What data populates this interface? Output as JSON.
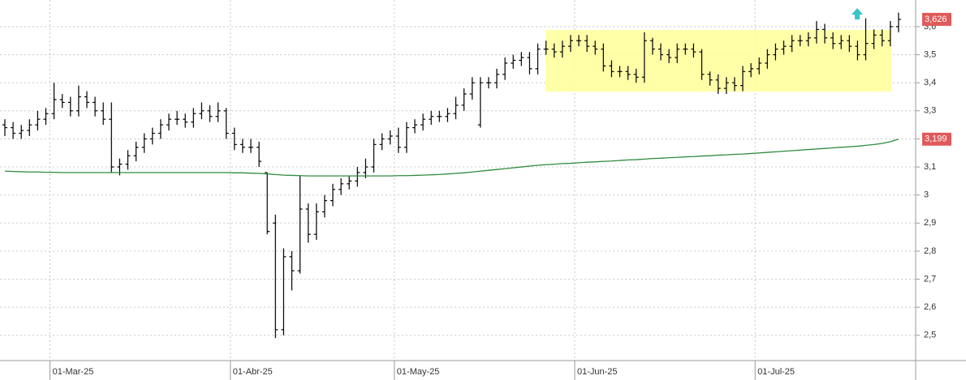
{
  "chart_data": {
    "type": "ohlc",
    "categories": [
      null,
      null,
      null,
      null,
      null,
      null,
      "01-Mar-25",
      null,
      null,
      null,
      null,
      null,
      null,
      null,
      null,
      null,
      null,
      null,
      null,
      null,
      null,
      null,
      null,
      null,
      null,
      null,
      null,
      null,
      "01-Abr-25",
      null,
      null,
      null,
      null,
      null,
      null,
      null,
      null,
      null,
      null,
      null,
      null,
      null,
      null,
      null,
      null,
      null,
      null,
      null,
      "01-May-25",
      null,
      null,
      null,
      null,
      null,
      null,
      null,
      null,
      null,
      null,
      null,
      null,
      null,
      null,
      null,
      null,
      null,
      null,
      null,
      null,
      null,
      "01-Jun-25",
      null,
      null,
      null,
      null,
      null,
      null,
      null,
      null,
      null,
      null,
      null,
      null,
      null,
      null,
      null,
      null,
      null,
      null,
      null,
      null,
      null,
      "01-Jul-25",
      null,
      null,
      null,
      null,
      null,
      null,
      null,
      null,
      null,
      null,
      null,
      null,
      null,
      null,
      null,
      null,
      null
    ],
    "open": [
      3.25,
      3.24,
      3.22,
      3.23,
      3.25,
      3.27,
      3.29,
      3.34,
      3.33,
      3.3,
      3.35,
      3.33,
      3.3,
      3.27,
      3.1,
      3.11,
      3.14,
      3.17,
      3.2,
      3.22,
      3.25,
      3.27,
      3.27,
      3.26,
      3.29,
      3.3,
      3.28,
      3.3,
      3.22,
      3.18,
      3.17,
      3.17,
      3.08,
      2.9,
      2.52,
      2.78,
      2.73,
      2.95,
      2.86,
      2.94,
      2.98,
      3.02,
      3.04,
      3.05,
      3.08,
      3.1,
      3.18,
      3.2,
      3.21,
      3.17,
      3.24,
      3.25,
      3.27,
      3.28,
      3.28,
      3.29,
      3.32,
      3.36,
      3.25,
      3.4,
      3.4,
      3.43,
      3.47,
      3.48,
      3.49,
      3.45,
      3.52,
      3.52,
      3.51,
      3.53,
      3.55,
      3.55,
      3.53,
      3.52,
      3.46,
      3.44,
      3.44,
      3.43,
      3.42,
      3.55,
      3.52,
      3.5,
      3.49,
      3.52,
      3.52,
      3.51,
      3.43,
      3.41,
      3.38,
      3.4,
      3.39,
      3.44,
      3.45,
      3.47,
      3.5,
      3.52,
      3.53,
      3.55,
      3.55,
      3.56,
      3.59,
      3.56,
      3.54,
      3.55,
      3.53,
      3.5,
      3.54,
      3.57,
      3.55,
      3.6
    ],
    "high": [
      3.27,
      3.26,
      3.25,
      3.27,
      3.3,
      3.31,
      3.4,
      3.36,
      3.35,
      3.39,
      3.37,
      3.35,
      3.33,
      3.33,
      3.13,
      3.16,
      3.19,
      3.22,
      3.24,
      3.27,
      3.29,
      3.3,
      3.29,
      3.31,
      3.33,
      3.32,
      3.33,
      3.31,
      3.24,
      3.2,
      3.2,
      3.19,
      3.08,
      2.93,
      2.81,
      2.8,
      3.07,
      2.97,
      2.97,
      3.0,
      3.04,
      3.06,
      3.07,
      3.1,
      3.13,
      3.2,
      3.22,
      3.23,
      3.24,
      3.26,
      3.27,
      3.29,
      3.3,
      3.3,
      3.31,
      3.35,
      3.38,
      3.42,
      3.42,
      3.42,
      3.45,
      3.49,
      3.5,
      3.51,
      3.51,
      3.54,
      3.55,
      3.54,
      3.55,
      3.57,
      3.57,
      3.57,
      3.55,
      3.54,
      3.48,
      3.46,
      3.46,
      3.45,
      3.58,
      3.56,
      3.54,
      3.52,
      3.54,
      3.54,
      3.54,
      3.52,
      3.44,
      3.43,
      3.42,
      3.42,
      3.46,
      3.47,
      3.49,
      3.52,
      3.54,
      3.55,
      3.57,
      3.57,
      3.58,
      3.62,
      3.61,
      3.58,
      3.57,
      3.57,
      3.55,
      3.63,
      3.59,
      3.59,
      3.62,
      3.65
    ],
    "low": [
      3.21,
      3.2,
      3.2,
      3.21,
      3.23,
      3.25,
      3.27,
      3.31,
      3.28,
      3.28,
      3.31,
      3.28,
      3.25,
      3.08,
      3.07,
      3.09,
      3.12,
      3.15,
      3.18,
      3.2,
      3.23,
      3.25,
      3.24,
      3.24,
      3.27,
      3.26,
      3.26,
      3.2,
      3.16,
      3.15,
      3.15,
      3.1,
      2.86,
      2.49,
      2.5,
      2.66,
      2.72,
      2.83,
      2.84,
      2.92,
      2.96,
      3.0,
      3.02,
      3.03,
      3.06,
      3.08,
      3.16,
      3.18,
      3.15,
      3.15,
      3.22,
      3.23,
      3.25,
      3.26,
      3.26,
      3.27,
      3.3,
      3.34,
      3.24,
      3.38,
      3.38,
      3.41,
      3.45,
      3.46,
      3.43,
      3.43,
      3.5,
      3.49,
      3.49,
      3.51,
      3.53,
      3.51,
      3.5,
      3.44,
      3.42,
      3.42,
      3.41,
      3.4,
      3.4,
      3.5,
      3.48,
      3.47,
      3.47,
      3.5,
      3.49,
      3.41,
      3.39,
      3.36,
      3.36,
      3.37,
      3.37,
      3.42,
      3.43,
      3.45,
      3.48,
      3.5,
      3.51,
      3.53,
      3.53,
      3.54,
      3.54,
      3.52,
      3.52,
      3.51,
      3.48,
      3.48,
      3.52,
      3.53,
      3.53,
      3.58
    ],
    "close": [
      3.24,
      3.22,
      3.23,
      3.25,
      3.27,
      3.29,
      3.34,
      3.33,
      3.3,
      3.35,
      3.33,
      3.3,
      3.27,
      3.1,
      3.11,
      3.14,
      3.17,
      3.2,
      3.22,
      3.25,
      3.27,
      3.27,
      3.26,
      3.29,
      3.3,
      3.28,
      3.3,
      3.22,
      3.18,
      3.17,
      3.17,
      3.12,
      2.87,
      2.52,
      2.78,
      2.73,
      2.95,
      2.86,
      2.94,
      2.98,
      3.02,
      3.04,
      3.05,
      3.08,
      3.1,
      3.18,
      3.2,
      3.21,
      3.17,
      3.24,
      3.25,
      3.27,
      3.28,
      3.28,
      3.29,
      3.32,
      3.36,
      3.4,
      3.4,
      3.4,
      3.43,
      3.47,
      3.48,
      3.49,
      3.45,
      3.52,
      3.52,
      3.51,
      3.53,
      3.55,
      3.55,
      3.53,
      3.52,
      3.46,
      3.44,
      3.44,
      3.43,
      3.42,
      3.55,
      3.52,
      3.5,
      3.49,
      3.52,
      3.52,
      3.51,
      3.43,
      3.41,
      3.38,
      3.4,
      3.39,
      3.44,
      3.45,
      3.47,
      3.5,
      3.52,
      3.53,
      3.55,
      3.55,
      3.56,
      3.59,
      3.56,
      3.54,
      3.55,
      3.53,
      3.5,
      3.54,
      3.57,
      3.55,
      3.6,
      3.626
    ],
    "value_labels": [
      null,
      null,
      null,
      null,
      null,
      null,
      null,
      null,
      null,
      null,
      null,
      null,
      null,
      null,
      null,
      null,
      null,
      null,
      null,
      null,
      null,
      null,
      null,
      null,
      null,
      null,
      null,
      null,
      null,
      null,
      null,
      null,
      null,
      null,
      null,
      null,
      null,
      null,
      null,
      null,
      null,
      null,
      null,
      null,
      null,
      null,
      null,
      null,
      null,
      null,
      null,
      null,
      null,
      null,
      null,
      null,
      null,
      null,
      null,
      null,
      null,
      null,
      null,
      null,
      null,
      null,
      null,
      null,
      null,
      null,
      null,
      null,
      null,
      null,
      null,
      null,
      null,
      null,
      null,
      null,
      null,
      null,
      null,
      null,
      null,
      null,
      null,
      null,
      null,
      null,
      null,
      null,
      null,
      null,
      null,
      null,
      null,
      null,
      null,
      null,
      null,
      null,
      null,
      null,
      null,
      null,
      null,
      null,
      null,
      "3,626"
    ],
    "color": "#000000",
    "label_color": "#e05a5a",
    "moving_average": {
      "color": "#2e8b3e",
      "values": [
        3.085,
        3.084,
        3.083,
        3.082,
        3.082,
        3.081,
        3.081,
        3.08,
        3.08,
        3.08,
        3.08,
        3.08,
        3.08,
        3.08,
        3.08,
        3.08,
        3.08,
        3.08,
        3.08,
        3.08,
        3.08,
        3.08,
        3.08,
        3.08,
        3.08,
        3.08,
        3.08,
        3.08,
        3.079,
        3.079,
        3.078,
        3.077,
        3.075,
        3.073,
        3.071,
        3.07,
        3.069,
        3.068,
        3.068,
        3.068,
        3.068,
        3.068,
        3.068,
        3.068,
        3.068,
        3.068,
        3.068,
        3.068,
        3.069,
        3.069,
        3.07,
        3.071,
        3.072,
        3.073,
        3.075,
        3.077,
        3.079,
        3.082,
        3.085,
        3.088,
        3.091,
        3.094,
        3.097,
        3.1,
        3.103,
        3.106,
        3.108,
        3.11,
        3.112,
        3.113,
        3.115,
        3.117,
        3.118,
        3.12,
        3.121,
        3.123,
        3.125,
        3.126,
        3.128,
        3.13,
        3.131,
        3.133,
        3.134,
        3.136,
        3.137,
        3.139,
        3.14,
        3.142,
        3.143,
        3.145,
        3.146,
        3.148,
        3.15,
        3.152,
        3.154,
        3.156,
        3.158,
        3.16,
        3.162,
        3.164,
        3.166,
        3.168,
        3.17,
        3.172,
        3.174,
        3.177,
        3.18,
        3.184,
        3.19,
        3.199
      ],
      "value_labels": [
        null,
        null,
        null,
        null,
        null,
        null,
        null,
        null,
        null,
        null,
        null,
        null,
        null,
        null,
        null,
        null,
        null,
        null,
        null,
        null,
        null,
        null,
        null,
        null,
        null,
        null,
        null,
        null,
        null,
        null,
        null,
        null,
        null,
        null,
        null,
        null,
        null,
        null,
        null,
        null,
        null,
        null,
        null,
        null,
        null,
        null,
        null,
        null,
        null,
        null,
        null,
        null,
        null,
        null,
        null,
        null,
        null,
        null,
        null,
        null,
        null,
        null,
        null,
        null,
        null,
        null,
        null,
        null,
        null,
        null,
        null,
        null,
        null,
        null,
        null,
        null,
        null,
        null,
        null,
        null,
        null,
        null,
        null,
        null,
        null,
        null,
        null,
        null,
        null,
        null,
        null,
        null,
        null,
        null,
        null,
        null,
        null,
        null,
        null,
        null,
        null,
        null,
        null,
        null,
        null,
        null,
        null,
        null,
        null,
        "3,199"
      ]
    },
    "ylim": [
      2.41,
      3.695
    ],
    "yticks": [
      {
        "value": 2.5,
        "label": "2,5"
      },
      {
        "value": 2.6,
        "label": "2,6"
      },
      {
        "value": 2.7,
        "label": "2,7"
      },
      {
        "value": 2.8,
        "label": "2,8"
      },
      {
        "value": 2.9,
        "label": "2,9"
      },
      3,
      {
        "value": 3.1,
        "label": "3,1"
      },
      {
        "value": 3.2,
        "label": "3,2"
      },
      {
        "value": 3.3,
        "label": "3,3"
      },
      {
        "value": 3.4,
        "label": "3,4"
      },
      {
        "value": 3.5,
        "label": "3,5"
      },
      {
        "value": 3.6,
        "label": "3,6"
      }
    ],
    "grid": true
  }
}
